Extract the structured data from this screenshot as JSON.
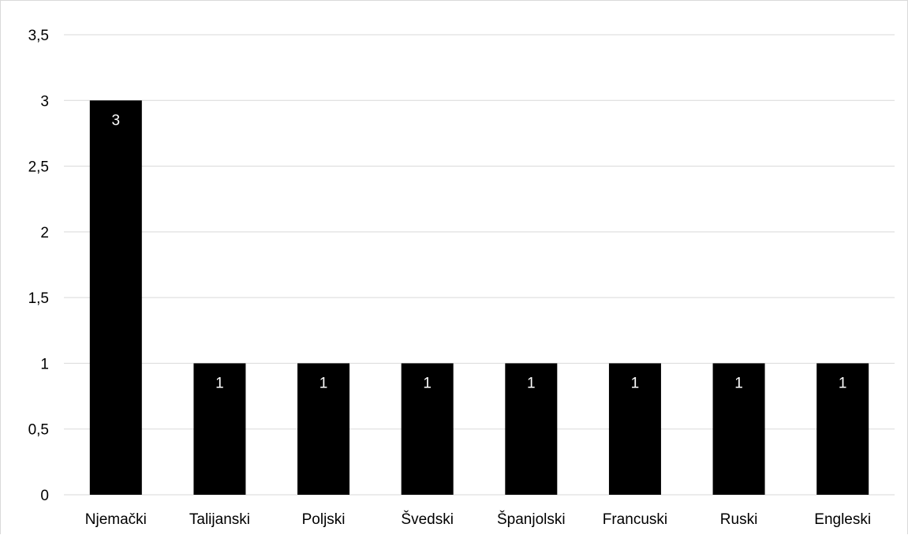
{
  "chart_data": {
    "type": "bar",
    "categories": [
      "Njemački",
      "Talijanski",
      "Poljski",
      "Švedski",
      "Španjolski",
      "Francuski",
      "Ruski",
      "Engleski"
    ],
    "values": [
      3,
      1,
      1,
      1,
      1,
      1,
      1,
      1
    ],
    "data_labels": [
      "3",
      "1",
      "1",
      "1",
      "1",
      "1",
      "1",
      "1"
    ],
    "title": "",
    "xlabel": "",
    "ylabel": "",
    "ylim": [
      0,
      3.5
    ],
    "y_ticks": [
      0,
      0.5,
      1,
      1.5,
      2,
      2.5,
      3,
      3.5
    ],
    "y_tick_labels": [
      "0",
      "0,5",
      "1",
      "1,5",
      "2",
      "2,5",
      "3",
      "3,5"
    ],
    "grid": true,
    "legend": "none",
    "bar_color": "#000000",
    "grid_color": "#d9d9d9",
    "data_label_color": "#ffffff"
  }
}
